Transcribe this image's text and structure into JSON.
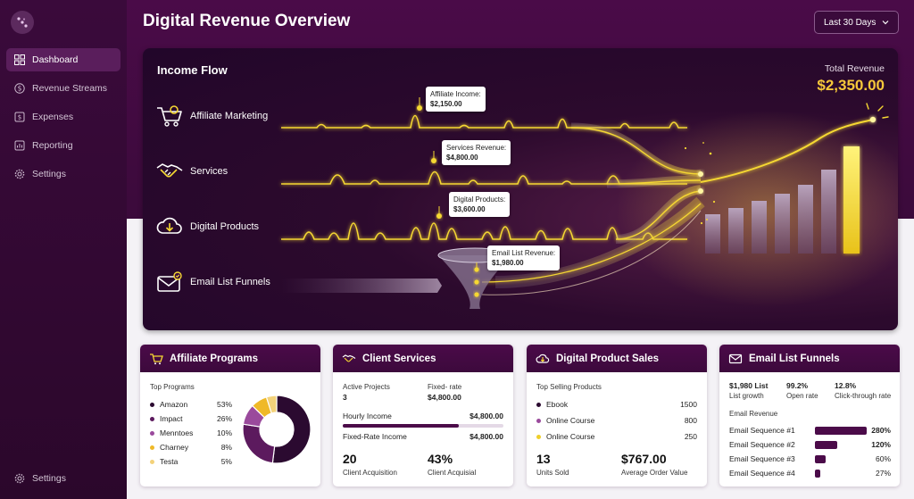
{
  "header": {
    "title": "Digital Revenue Overview",
    "range": "Last 30 Days"
  },
  "sidebar": {
    "items": [
      {
        "label": "Dashboard",
        "icon": "grid-icon"
      },
      {
        "label": "Revenue Streams",
        "icon": "dollar-circle-icon"
      },
      {
        "label": "Expenses",
        "icon": "receipt-icon"
      },
      {
        "label": "Reporting",
        "icon": "chart-icon"
      },
      {
        "label": "Settings",
        "icon": "gear-icon"
      }
    ],
    "bottom": {
      "label": "Settings",
      "icon": "gear-icon"
    }
  },
  "hero": {
    "title": "Income Flow",
    "total_label": "Total Revenue",
    "total_value": "$2,350.00",
    "sources": [
      {
        "label": "Affiliate Marketing",
        "icon": "cart-icon"
      },
      {
        "label": "Services",
        "icon": "handshake-icon"
      },
      {
        "label": "Digital Products",
        "icon": "cloud-download-icon"
      },
      {
        "label": "Email List Funnels",
        "icon": "mail-icon"
      }
    ],
    "callouts": [
      {
        "label": "Affiliate Income:",
        "value": "$2,150.00"
      },
      {
        "label": "Services Revenue:",
        "value": "$4,800.00"
      },
      {
        "label": "Digital Products:",
        "value": "$3,600.00"
      },
      {
        "label": "Email List Revenue:",
        "value": "$1,980.00"
      }
    ],
    "accent": "#f6d832"
  },
  "affiliate": {
    "title": "Affiliate Programs",
    "subtitle": "Top Programs",
    "programs": [
      {
        "name": "Amazon",
        "pct": "53%",
        "value": 53,
        "color": "#2b0a30"
      },
      {
        "name": "Impact",
        "pct": "26%",
        "value": 26,
        "color": "#5c1a5e"
      },
      {
        "name": "Menntoes",
        "pct": "10%",
        "value": 10,
        "color": "#9a4a9c"
      },
      {
        "name": "Charney",
        "pct": "8%",
        "value": 8,
        "color": "#efb928"
      },
      {
        "name": "Testa",
        "pct": "5%",
        "value": 5,
        "color": "#f3d27a"
      }
    ]
  },
  "services": {
    "title": "Client Services",
    "active_label": "Active Projects",
    "active_value": "3",
    "fixed_label": "Fixed- rate",
    "fixed_value": "$4,800.00",
    "hourly_label": "Hourly Income",
    "hourly_value": "$4,800.00",
    "hourly_fill": 0.72,
    "fixedrate_label": "Fixed-Rate Income",
    "fixedrate_value": "$4,800.00",
    "acq_value": "20",
    "acq_label": "Client Acquisition",
    "rate_value": "43%",
    "rate_label": "Client Acquisial"
  },
  "products": {
    "title": "Digital Product Sales",
    "subtitle": "Top Selling Products",
    "items": [
      {
        "name": "Ebook",
        "value": "1500",
        "color": "#2b0a30"
      },
      {
        "name": "Online Course",
        "value": "800",
        "color": "#9a4a9c"
      },
      {
        "name": "Online Course",
        "value": "250",
        "color": "#efcf2a"
      }
    ],
    "units_value": "13",
    "units_label": "Units Sold",
    "aov_value": "$767.00",
    "aov_label": "Average Order Value"
  },
  "email": {
    "title": "Email List Funnels",
    "stats": [
      {
        "value": "$1,980 List",
        "label": "List growth"
      },
      {
        "value": "99.2%",
        "label": "Open rate"
      },
      {
        "value": "12.8%",
        "label": "Click-through rate"
      }
    ],
    "revenue_label": "Email Revenue",
    "sequences": [
      {
        "name": "Email Sequence #1",
        "pct": "280%",
        "value": 280
      },
      {
        "name": "Email Sequence #2",
        "pct": "120%",
        "value": 120
      },
      {
        "name": "Email Sequence #3",
        "pct": "60%",
        "value": 60
      },
      {
        "name": "Email Sequence #4",
        "pct": "27%",
        "value": 27
      }
    ]
  }
}
